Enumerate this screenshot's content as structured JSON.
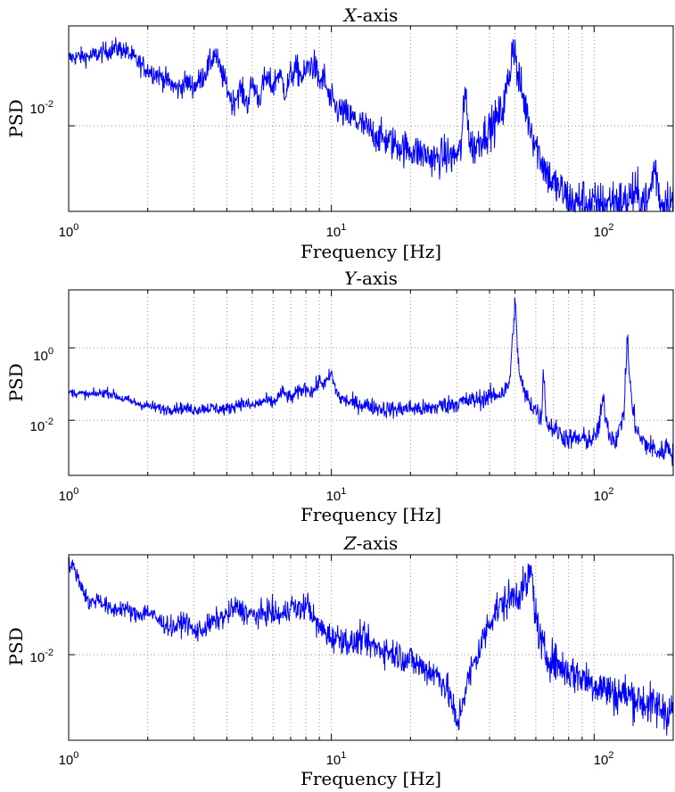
{
  "figure": {
    "line_color": "#0000ff",
    "axes_color": "#000000",
    "grid_color": "#7a7a7a",
    "background": "#ffffff"
  },
  "chart_data": [
    {
      "type": "line",
      "title_italic": "X",
      "title_suffix": "-axis",
      "xlabel": "Frequency [Hz]",
      "ylabel": "PSD",
      "xscale": "log",
      "yscale": "log",
      "xlim": [
        1,
        200
      ],
      "ylim": [
        0.0003,
        0.6
      ],
      "grid": "on",
      "x_ticks": [
        {
          "base": "10",
          "exp": "0"
        },
        {
          "base": "10",
          "exp": "1"
        },
        {
          "base": "10",
          "exp": "2"
        }
      ],
      "y_ticks": [
        {
          "base": "10",
          "exp": "-2",
          "value": 0.01
        }
      ],
      "series": [
        {
          "x": [
            1,
            1.1,
            1.2,
            1.35,
            1.5,
            1.6,
            1.7,
            1.85,
            2.0,
            2.2,
            2.4,
            2.6,
            2.8,
            3.0,
            3.2,
            3.4,
            3.6,
            3.8,
            4.0,
            4.2,
            4.5,
            4.8,
            5.0,
            5.3,
            5.6,
            6.0,
            6.3,
            6.7,
            7.0,
            7.4,
            7.8,
            8.2,
            8.6,
            9.0,
            9.4,
            9.8,
            10.5,
            11.5,
            12.5,
            14,
            15.5,
            17,
            19,
            21,
            23,
            25,
            27,
            29,
            31,
            32.5,
            33.5,
            35,
            37,
            39,
            41,
            43,
            45,
            47,
            48,
            49,
            50,
            51,
            52,
            53,
            55,
            58,
            62,
            66,
            70,
            75,
            80,
            85,
            90,
            95,
            100,
            110,
            120,
            130,
            140,
            150,
            160,
            170,
            180,
            190,
            200
          ],
          "y": [
            0.16,
            0.17,
            0.17,
            0.2,
            0.24,
            0.23,
            0.19,
            0.13,
            0.1,
            0.08,
            0.06,
            0.045,
            0.06,
            0.05,
            0.07,
            0.11,
            0.2,
            0.09,
            0.05,
            0.025,
            0.045,
            0.025,
            0.06,
            0.03,
            0.07,
            0.05,
            0.09,
            0.04,
            0.08,
            0.1,
            0.07,
            0.12,
            0.12,
            0.06,
            0.07,
            0.03,
            0.02,
            0.015,
            0.012,
            0.008,
            0.006,
            0.005,
            0.004,
            0.0035,
            0.003,
            0.0025,
            0.003,
            0.0028,
            0.0035,
            0.05,
            0.005,
            0.004,
            0.006,
            0.008,
            0.01,
            0.014,
            0.02,
            0.06,
            0.1,
            0.35,
            0.2,
            0.08,
            0.06,
            0.04,
            0.02,
            0.008,
            0.003,
            0.0015,
            0.0009,
            0.0007,
            0.0005,
            0.0004,
            0.0005,
            0.0004,
            0.0004,
            0.0004,
            0.0005,
            0.0004,
            0.0006,
            0.0005,
            0.0004,
            0.002,
            0.0004,
            0.0005,
            0.0004
          ],
          "noise": 0.45
        }
      ]
    },
    {
      "type": "line",
      "title_italic": "Y",
      "title_suffix": "-axis",
      "xlabel": "Frequency [Hz]",
      "ylabel": "PSD",
      "xscale": "log",
      "yscale": "log",
      "xlim": [
        1,
        200
      ],
      "ylim": [
        0.0003,
        40
      ],
      "grid": "on",
      "x_ticks": [
        {
          "base": "10",
          "exp": "0"
        },
        {
          "base": "10",
          "exp": "1"
        },
        {
          "base": "10",
          "exp": "2"
        }
      ],
      "y_ticks": [
        {
          "base": "10",
          "exp": "-2",
          "value": 0.01
        },
        {
          "base": "10",
          "exp": "0",
          "value": 1
        }
      ],
      "series": [
        {
          "x": [
            1,
            1.2,
            1.4,
            1.6,
            1.8,
            2.0,
            2.3,
            2.6,
            3.0,
            3.4,
            4.0,
            4.5,
            5.0,
            5.6,
            6.0,
            6.5,
            7.0,
            7.5,
            8.0,
            8.5,
            9.0,
            9.5,
            10.0,
            10.3,
            10.8,
            12,
            14,
            16,
            18,
            20,
            23,
            26,
            30,
            34,
            38,
            42,
            45,
            47,
            48,
            49,
            50,
            51,
            52,
            54,
            57,
            60,
            63,
            64,
            66,
            70,
            75,
            80,
            85,
            90,
            100,
            105,
            108,
            112,
            115,
            120,
            125,
            130,
            132,
            134,
            136,
            140,
            145,
            150,
            160,
            170,
            180,
            190,
            200
          ],
          "y": [
            0.06,
            0.05,
            0.06,
            0.04,
            0.03,
            0.025,
            0.02,
            0.022,
            0.02,
            0.022,
            0.02,
            0.03,
            0.025,
            0.035,
            0.03,
            0.06,
            0.04,
            0.06,
            0.08,
            0.06,
            0.12,
            0.1,
            0.2,
            0.08,
            0.04,
            0.03,
            0.025,
            0.02,
            0.02,
            0.022,
            0.02,
            0.025,
            0.03,
            0.035,
            0.04,
            0.05,
            0.06,
            0.08,
            0.2,
            2.0,
            25.0,
            1.0,
            0.2,
            0.06,
            0.03,
            0.02,
            0.01,
            0.3,
            0.008,
            0.006,
            0.004,
            0.003,
            0.003,
            0.003,
            0.003,
            0.008,
            0.04,
            0.008,
            0.004,
            0.003,
            0.005,
            0.02,
            0.2,
            2.5,
            0.2,
            0.02,
            0.006,
            0.003,
            0.002,
            0.0015,
            0.0012,
            0.002,
            0.0012
          ],
          "noise": 0.35
        }
      ]
    },
    {
      "type": "line",
      "title_italic": "Z",
      "title_suffix": "-axis",
      "xlabel": "Frequency [Hz]",
      "ylabel": "PSD",
      "xscale": "log",
      "yscale": "log",
      "xlim": [
        1,
        200
      ],
      "ylim": [
        0.0003,
        0.6
      ],
      "grid": "on",
      "x_ticks": [
        {
          "base": "10",
          "exp": "0"
        },
        {
          "base": "10",
          "exp": "1"
        },
        {
          "base": "10",
          "exp": "2"
        }
      ],
      "y_ticks": [
        {
          "base": "10",
          "exp": "-2",
          "value": 0.01
        }
      ],
      "series": [
        {
          "x": [
            1,
            1.05,
            1.1,
            1.2,
            1.3,
            1.45,
            1.6,
            1.8,
            2.0,
            2.2,
            2.5,
            2.8,
            3.0,
            3.3,
            3.6,
            4.0,
            4.3,
            4.6,
            5.0,
            5.4,
            5.8,
            6.2,
            6.6,
            7.0,
            7.4,
            7.8,
            8.2,
            8.6,
            9.0,
            9.5,
            10,
            11,
            12,
            13,
            14,
            16,
            18,
            20,
            22,
            24,
            26,
            28,
            29,
            30,
            31,
            32,
            34,
            36,
            38,
            40,
            42,
            45,
            48,
            50,
            52,
            54,
            56,
            57,
            58,
            59,
            60,
            62,
            65,
            70,
            75,
            80,
            90,
            100,
            110,
            120,
            130,
            140,
            150,
            160,
            170,
            180,
            190,
            200
          ],
          "y": [
            0.4,
            0.35,
            0.2,
            0.08,
            0.1,
            0.06,
            0.07,
            0.05,
            0.06,
            0.04,
            0.03,
            0.04,
            0.025,
            0.03,
            0.04,
            0.05,
            0.07,
            0.06,
            0.05,
            0.05,
            0.06,
            0.05,
            0.05,
            0.08,
            0.06,
            0.07,
            0.08,
            0.04,
            0.03,
            0.025,
            0.02,
            0.02,
            0.015,
            0.02,
            0.015,
            0.012,
            0.01,
            0.008,
            0.006,
            0.005,
            0.004,
            0.002,
            0.0012,
            0.0005,
            0.001,
            0.002,
            0.005,
            0.01,
            0.02,
            0.04,
            0.06,
            0.08,
            0.1,
            0.12,
            0.13,
            0.15,
            0.2,
            0.3,
            0.25,
            0.1,
            0.05,
            0.02,
            0.01,
            0.008,
            0.006,
            0.005,
            0.004,
            0.003,
            0.0025,
            0.002,
            0.002,
            0.0018,
            0.0015,
            0.0013,
            0.0012,
            0.0011,
            0.001,
            0.001
          ],
          "noise": 0.4
        }
      ]
    }
  ]
}
